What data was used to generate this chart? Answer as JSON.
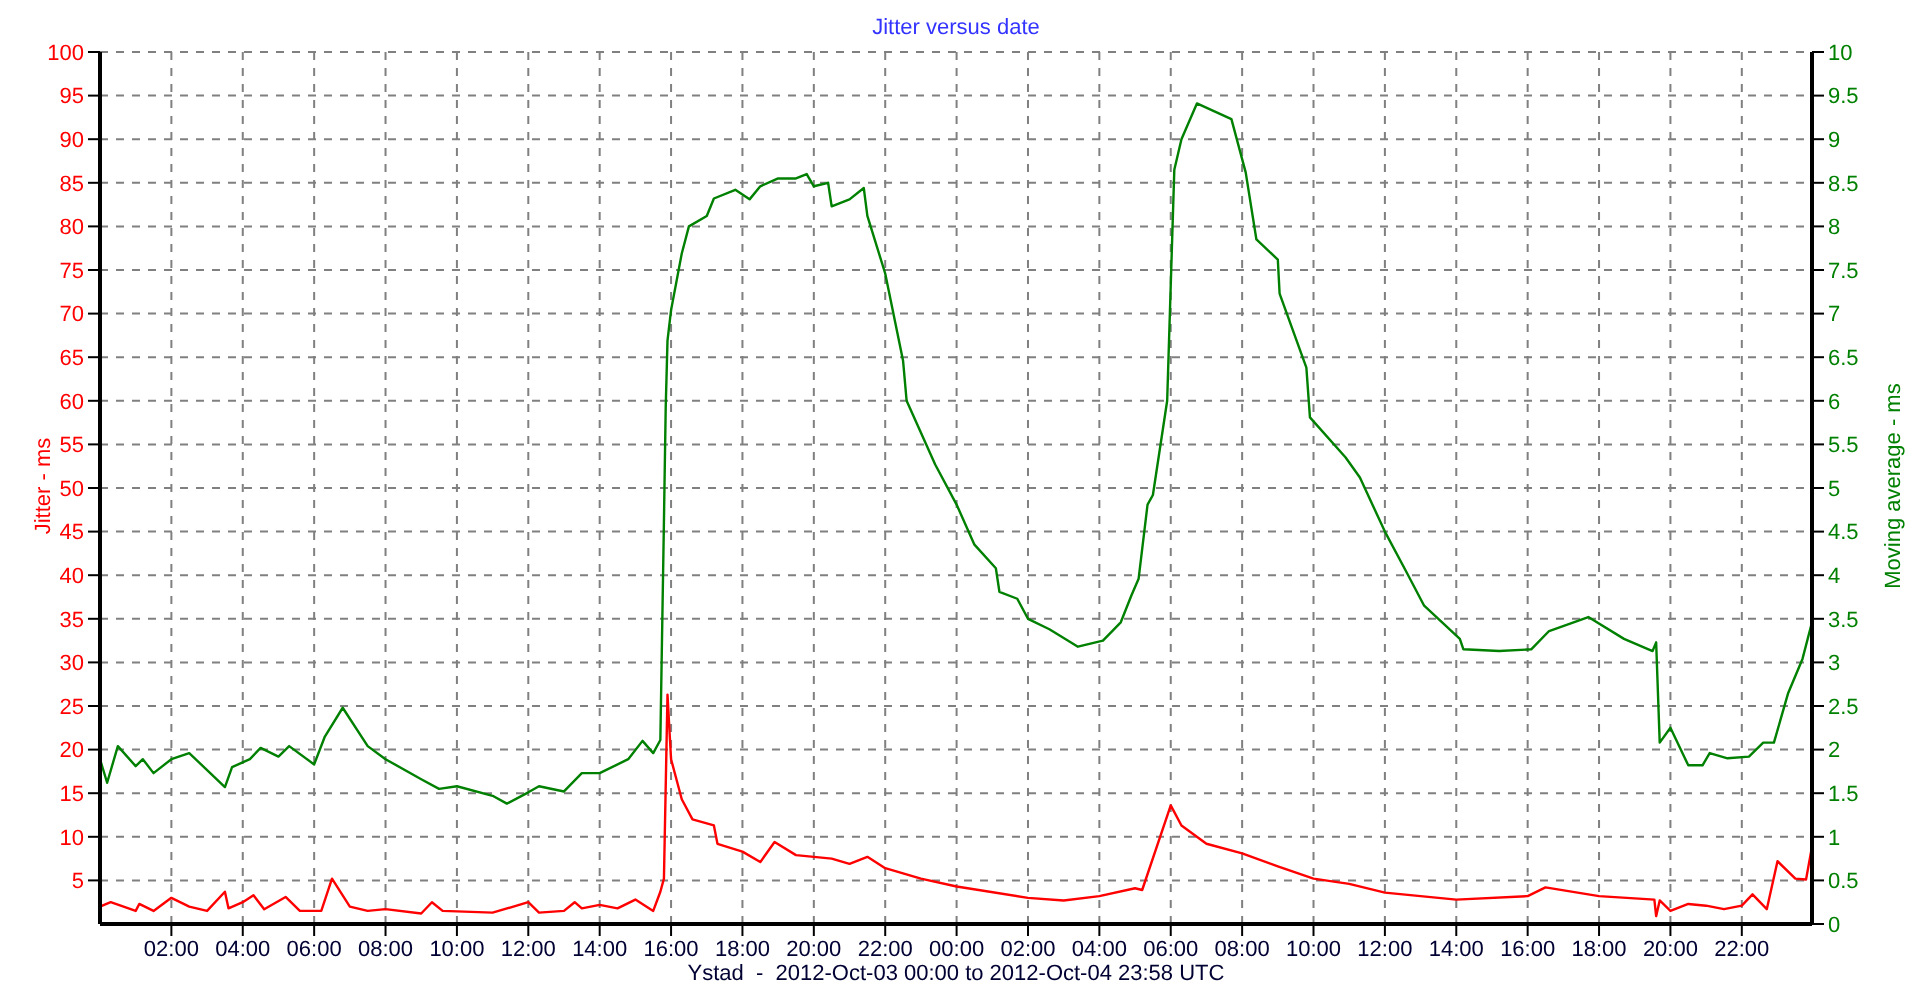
{
  "chart_data": {
    "type": "line",
    "title": "Jitter versus date",
    "xlabel": "Ystad  -  2012-Oct-03 00:00 to 2012-Oct-04 23:58 UTC",
    "ylabel": "Jitter - ms",
    "y2label": "Moving average - ms",
    "xlim": [
      "2012-10-03T00:00",
      "2012-10-04T23:58"
    ],
    "xticks": [
      {
        "value": "2012-10-03T02:00",
        "label": "02:00"
      },
      {
        "value": "2012-10-03T04:00",
        "label": "04:00"
      },
      {
        "value": "2012-10-03T06:00",
        "label": "06:00"
      },
      {
        "value": "2012-10-03T08:00",
        "label": "08:00"
      },
      {
        "value": "2012-10-03T10:00",
        "label": "10:00"
      },
      {
        "value": "2012-10-03T12:00",
        "label": "12:00"
      },
      {
        "value": "2012-10-03T14:00",
        "label": "14:00"
      },
      {
        "value": "2012-10-03T16:00",
        "label": "16:00"
      },
      {
        "value": "2012-10-03T18:00",
        "label": "18:00"
      },
      {
        "value": "2012-10-03T20:00",
        "label": "20:00"
      },
      {
        "value": "2012-10-03T22:00",
        "label": "22:00"
      },
      {
        "value": "2012-10-04T00:00",
        "label": "00:00"
      },
      {
        "value": "2012-10-04T02:00",
        "label": "02:00"
      },
      {
        "value": "2012-10-04T04:00",
        "label": "04:00"
      },
      {
        "value": "2012-10-04T06:00",
        "label": "06:00"
      },
      {
        "value": "2012-10-04T08:00",
        "label": "08:00"
      },
      {
        "value": "2012-10-04T10:00",
        "label": "10:00"
      },
      {
        "value": "2012-10-04T12:00",
        "label": "12:00"
      },
      {
        "value": "2012-10-04T14:00",
        "label": "14:00"
      },
      {
        "value": "2012-10-04T16:00",
        "label": "16:00"
      },
      {
        "value": "2012-10-04T18:00",
        "label": "18:00"
      },
      {
        "value": "2012-10-04T20:00",
        "label": "20:00"
      },
      {
        "value": "2012-10-04T22:00",
        "label": "22:00"
      }
    ],
    "ylim": [
      0,
      100
    ],
    "yticks": [
      5,
      10,
      15,
      20,
      25,
      30,
      35,
      40,
      45,
      50,
      55,
      60,
      65,
      70,
      75,
      80,
      85,
      90,
      95,
      100
    ],
    "y2lim": [
      0,
      10
    ],
    "y2ticks": [
      0,
      0.5,
      1,
      1.5,
      2,
      2.5,
      3,
      3.5,
      4,
      4.5,
      5,
      5.5,
      6,
      6.5,
      7,
      7.5,
      8,
      8.5,
      9,
      9.5,
      10
    ],
    "grid": true,
    "marker": "none",
    "line_style": "solid",
    "series": [
      {
        "color": "#ff0000",
        "x": [
          "2012-10-03T00:00",
          "2012-10-03T00:18",
          "2012-10-03T01:00",
          "2012-10-03T01:06",
          "2012-10-03T01:30",
          "2012-10-03T02:00",
          "2012-10-03T02:30",
          "2012-10-03T03:00",
          "2012-10-03T03:30",
          "2012-10-03T03:36",
          "2012-10-03T04:00",
          "2012-10-03T04:18",
          "2012-10-03T04:36",
          "2012-10-03T05:12",
          "2012-10-03T05:36",
          "2012-10-03T06:12",
          "2012-10-03T06:30",
          "2012-10-03T07:00",
          "2012-10-03T07:30",
          "2012-10-03T08:00",
          "2012-10-03T09:00",
          "2012-10-03T09:18",
          "2012-10-03T09:36",
          "2012-10-03T11:00",
          "2012-10-03T12:00",
          "2012-10-03T12:18",
          "2012-10-03T13:00",
          "2012-10-03T13:18",
          "2012-10-03T13:30",
          "2012-10-03T14:00",
          "2012-10-03T14:30",
          "2012-10-03T15:00",
          "2012-10-03T15:30",
          "2012-10-03T15:42",
          "2012-10-03T15:48",
          "2012-10-03T15:54",
          "2012-10-03T16:00",
          "2012-10-03T16:18",
          "2012-10-03T16:36",
          "2012-10-03T17:12",
          "2012-10-03T17:18",
          "2012-10-03T18:00",
          "2012-10-03T18:30",
          "2012-10-03T18:54",
          "2012-10-03T19:30",
          "2012-10-03T20:30",
          "2012-10-03T21:00",
          "2012-10-03T21:30",
          "2012-10-03T22:00",
          "2012-10-03T23:00",
          "2012-10-04T00:00",
          "2012-10-04T02:00",
          "2012-10-04T03:00",
          "2012-10-04T04:00",
          "2012-10-04T05:00",
          "2012-10-04T05:12",
          "2012-10-04T06:00",
          "2012-10-04T06:18",
          "2012-10-04T07:00",
          "2012-10-04T08:00",
          "2012-10-04T09:00",
          "2012-10-04T10:00",
          "2012-10-04T11:00",
          "2012-10-04T12:00",
          "2012-10-04T14:00",
          "2012-10-04T16:00",
          "2012-10-04T16:30",
          "2012-10-04T18:00",
          "2012-10-04T19:33",
          "2012-10-04T19:36",
          "2012-10-04T19:42",
          "2012-10-04T20:00",
          "2012-10-04T20:30",
          "2012-10-04T21:00",
          "2012-10-04T21:30",
          "2012-10-04T22:00",
          "2012-10-04T22:18",
          "2012-10-04T22:42",
          "2012-10-04T23:00",
          "2012-10-04T23:30",
          "2012-10-04T23:48",
          "2012-10-04T23:57"
        ],
        "values": [
          2,
          2.5,
          1.5,
          2.3,
          1.5,
          3,
          2,
          1.5,
          3.7,
          1.8,
          2.5,
          3.3,
          1.7,
          3.1,
          1.5,
          1.5,
          5.2,
          2,
          1.5,
          1.7,
          1.2,
          2.5,
          1.5,
          1.3,
          2.5,
          1.3,
          1.5,
          2.5,
          1.8,
          2.2,
          1.8,
          2.8,
          1.5,
          3.7,
          5.2,
          26.3,
          18.9,
          14.3,
          12,
          11.3,
          9.2,
          8.3,
          7.1,
          9.4,
          7.9,
          7.5,
          6.9,
          7.7,
          6.4,
          5.2,
          4.3,
          3,
          2.7,
          3.2,
          4.1,
          3.9,
          13.6,
          11.3,
          9.2,
          8.1,
          6.6,
          5.2,
          4.6,
          3.6,
          2.8,
          3.2,
          4.2,
          3.2,
          2.8,
          0.9,
          2.7,
          1.5,
          2.3,
          2.1,
          1.7,
          2.1,
          3.4,
          1.7,
          7.2,
          5.2,
          5.1,
          8.5
        ]
      },
      {
        "color": "#008000",
        "axis": "y2",
        "x": [
          "2012-10-03T00:00",
          "2012-10-03T00:12",
          "2012-10-03T00:30",
          "2012-10-03T01:00",
          "2012-10-03T01:12",
          "2012-10-03T01:30",
          "2012-10-03T02:00",
          "2012-10-03T02:30",
          "2012-10-03T03:30",
          "2012-10-03T03:42",
          "2012-10-03T04:12",
          "2012-10-03T04:30",
          "2012-10-03T05:00",
          "2012-10-03T05:18",
          "2012-10-03T06:00",
          "2012-10-03T06:18",
          "2012-10-03T06:48",
          "2012-10-03T07:30",
          "2012-10-03T08:00",
          "2012-10-03T09:00",
          "2012-10-03T09:30",
          "2012-10-03T10:00",
          "2012-10-03T11:00",
          "2012-10-03T11:24",
          "2012-10-03T12:00",
          "2012-10-03T12:18",
          "2012-10-03T13:00",
          "2012-10-03T13:30",
          "2012-10-03T14:00",
          "2012-10-03T14:48",
          "2012-10-03T15:12",
          "2012-10-03T15:30",
          "2012-10-03T15:42",
          "2012-10-03T15:48",
          "2012-10-03T15:51",
          "2012-10-03T15:54",
          "2012-10-03T16:00",
          "2012-10-03T16:18",
          "2012-10-03T16:30",
          "2012-10-03T17:00",
          "2012-10-03T17:12",
          "2012-10-03T17:48",
          "2012-10-03T18:12",
          "2012-10-03T18:30",
          "2012-10-03T19:00",
          "2012-10-03T19:30",
          "2012-10-03T19:48",
          "2012-10-03T20:00",
          "2012-10-03T20:24",
          "2012-10-03T20:30",
          "2012-10-03T21:00",
          "2012-10-03T21:24",
          "2012-10-03T21:30",
          "2012-10-03T22:00",
          "2012-10-03T22:30",
          "2012-10-03T22:36",
          "2012-10-03T23:24",
          "2012-10-04T00:00",
          "2012-10-04T00:30",
          "2012-10-04T01:06",
          "2012-10-04T01:12",
          "2012-10-04T01:42",
          "2012-10-04T02:00",
          "2012-10-04T02:36",
          "2012-10-04T03:24",
          "2012-10-04T04:06",
          "2012-10-04T04:36",
          "2012-10-04T04:54",
          "2012-10-04T05:06",
          "2012-10-04T05:21",
          "2012-10-04T05:30",
          "2012-10-04T05:54",
          "2012-10-04T06:06",
          "2012-10-04T06:18",
          "2012-10-04T06:44",
          "2012-10-04T07:42",
          "2012-10-04T08:06",
          "2012-10-04T08:24",
          "2012-10-04T09:00",
          "2012-10-04T09:03",
          "2012-10-04T09:48",
          "2012-10-04T09:54",
          "2012-10-04T10:54",
          "2012-10-04T11:18",
          "2012-10-04T12:00",
          "2012-10-04T12:36",
          "2012-10-04T13:06",
          "2012-10-04T14:06",
          "2012-10-04T14:12",
          "2012-10-04T15:12",
          "2012-10-04T16:06",
          "2012-10-04T16:36",
          "2012-10-04T17:42",
          "2012-10-04T18:42",
          "2012-10-04T19:30",
          "2012-10-04T19:36",
          "2012-10-04T19:42",
          "2012-10-04T20:00",
          "2012-10-04T20:30",
          "2012-10-04T20:54",
          "2012-10-04T21:06",
          "2012-10-04T21:36",
          "2012-10-04T22:12",
          "2012-10-04T22:36",
          "2012-10-04T22:54",
          "2012-10-04T23:18",
          "2012-10-04T23:42",
          "2012-10-04T23:58"
        ],
        "values": [
          1.89,
          1.62,
          2.04,
          1.81,
          1.89,
          1.73,
          1.89,
          1.96,
          1.57,
          1.8,
          1.89,
          2.02,
          1.92,
          2.04,
          1.83,
          2.15,
          2.48,
          2.04,
          1.89,
          1.66,
          1.55,
          1.58,
          1.47,
          1.38,
          1.51,
          1.58,
          1.52,
          1.73,
          1.73,
          1.89,
          2.1,
          1.96,
          2.11,
          4.61,
          5.92,
          6.69,
          7.04,
          7.69,
          8,
          8.12,
          8.32,
          8.42,
          8.31,
          8.46,
          8.55,
          8.55,
          8.6,
          8.46,
          8.5,
          8.23,
          8.31,
          8.44,
          8.12,
          7.46,
          6.46,
          6,
          5.27,
          4.81,
          4.35,
          4.08,
          3.81,
          3.73,
          3.5,
          3.38,
          3.18,
          3.25,
          3.46,
          3.77,
          3.96,
          4.81,
          4.92,
          6,
          8.65,
          9,
          9.41,
          9.23,
          8.62,
          7.85,
          7.62,
          7.23,
          6.38,
          5.81,
          5.35,
          5.12,
          4.5,
          4.04,
          3.65,
          3.27,
          3.15,
          3.13,
          3.15,
          3.36,
          3.52,
          3.27,
          3.13,
          3.23,
          2.08,
          2.25,
          1.82,
          1.82,
          1.96,
          1.9,
          1.92,
          2.08,
          2.08,
          2.65,
          3.04,
          3.46
        ]
      }
    ]
  }
}
